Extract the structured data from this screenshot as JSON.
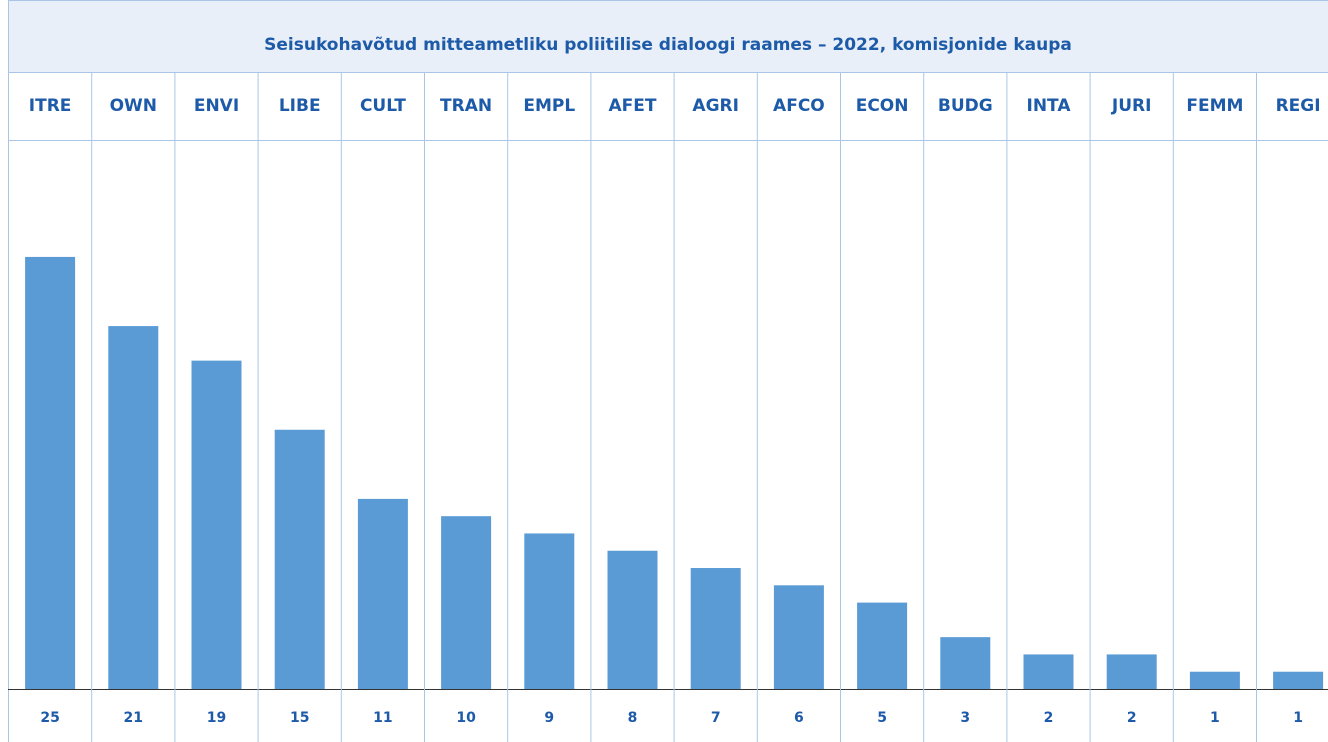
{
  "chart_data": {
    "type": "bar",
    "title": "Seisukohavõtud mitteametliku poliitilise dialoogi raames – 2022, komisjonide kaupa",
    "categories": [
      "ITRE",
      "OWN",
      "ENVI",
      "LIBE",
      "CULT",
      "TRAN",
      "EMPL",
      "AFET",
      "AGRI",
      "AFCO",
      "ECON",
      "BUDG",
      "INTA",
      "JURI",
      "FEMM",
      "REGI"
    ],
    "values": [
      25,
      21,
      19,
      15,
      11,
      10,
      9,
      8,
      7,
      6,
      5,
      3,
      2,
      2,
      1,
      1
    ],
    "color": "#5b9bd5"
  }
}
